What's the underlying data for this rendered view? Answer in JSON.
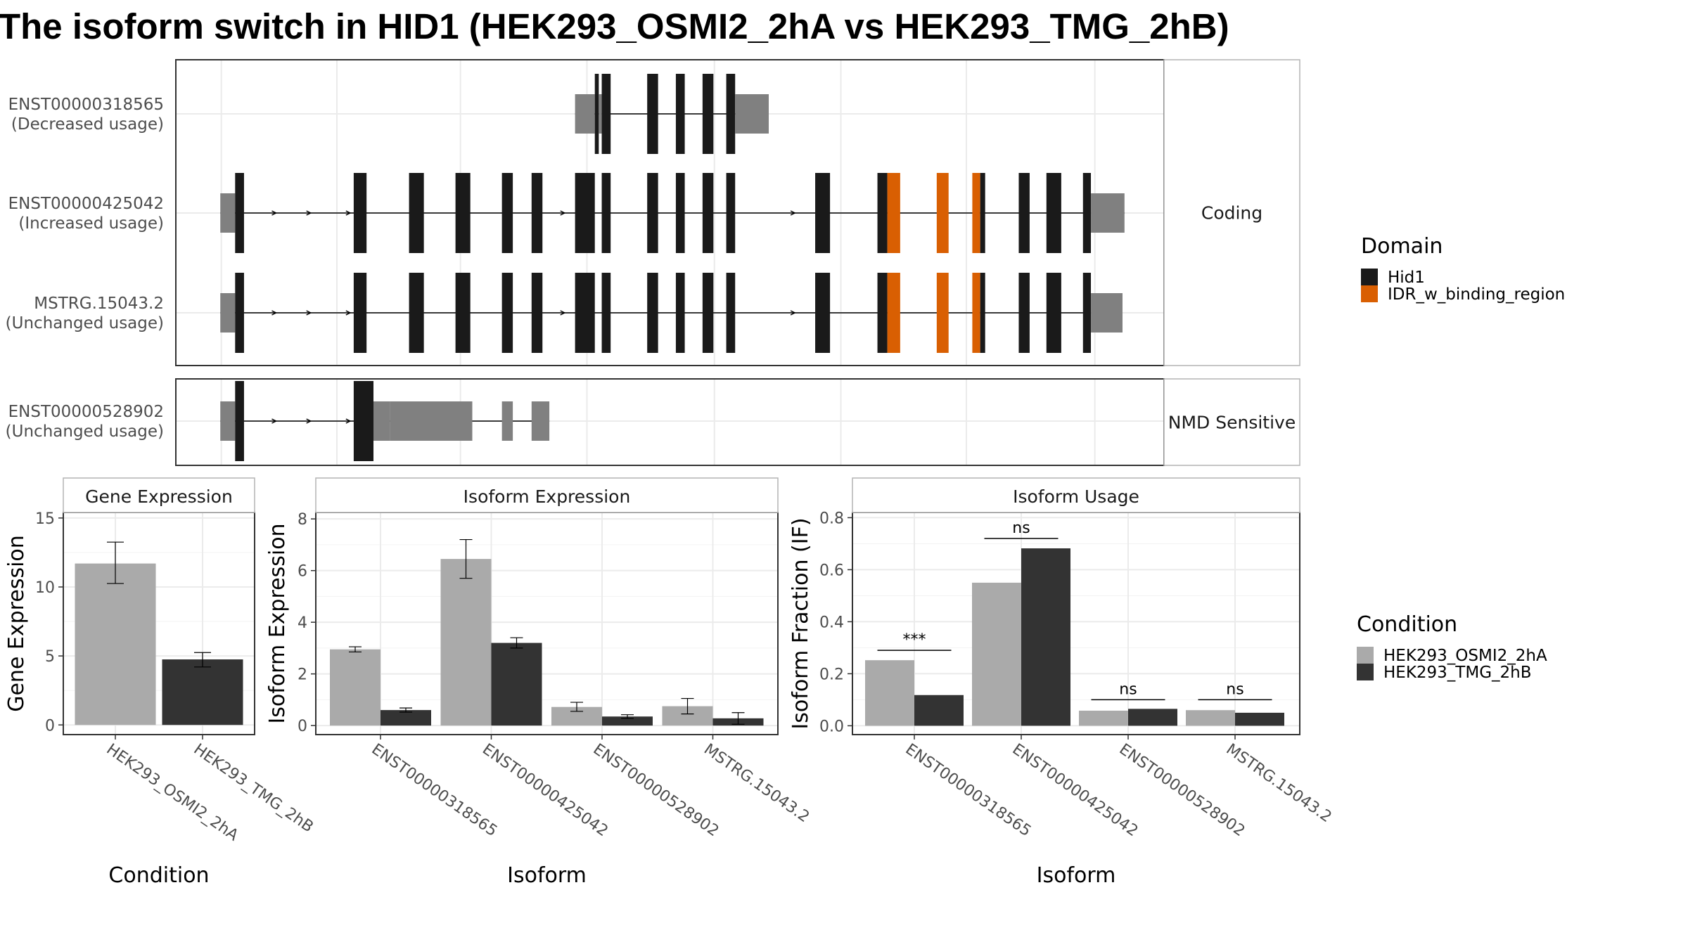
{
  "title": "The isoform switch in HID1 (HEK293_OSMI2_2hA vs HEK293_TMG_2hB)",
  "colors": {
    "exon": "#1a1a1a",
    "utr": "#808080",
    "idr": "#d95f02",
    "cond_a": "#aaaaaa",
    "cond_b": "#333333",
    "grid": "#ebebeb",
    "panel_border": "#333333",
    "strip_border": "#b3b3b3"
  },
  "transcript_panel": {
    "groups": [
      {
        "label": "Coding",
        "transcripts": [
          {
            "id": "ENST00000318565",
            "usage": "(Decreased usage)",
            "segments": [
              {
                "type": "utr",
                "start": 0.404,
                "end": 0.424
              },
              {
                "type": "exon",
                "start": 0.424,
                "end": 0.428
              },
              {
                "type": "utr",
                "start": 0.428,
                "end": 0.431
              },
              {
                "type": "exon",
                "start": 0.431,
                "end": 0.44
              },
              {
                "type": "exon",
                "start": 0.477,
                "end": 0.488
              },
              {
                "type": "exon",
                "start": 0.506,
                "end": 0.515
              },
              {
                "type": "exon",
                "start": 0.533,
                "end": 0.544
              },
              {
                "type": "exon",
                "start": 0.557,
                "end": 0.566
              },
              {
                "type": "utr",
                "start": 0.566,
                "end": 0.6
              }
            ],
            "arrows": []
          },
          {
            "id": "ENST00000425042",
            "usage": "(Increased usage)",
            "segments": [
              {
                "type": "utr",
                "start": 0.045,
                "end": 0.06
              },
              {
                "type": "exon",
                "start": 0.06,
                "end": 0.069
              },
              {
                "type": "exon",
                "start": 0.18,
                "end": 0.193
              },
              {
                "type": "exon",
                "start": 0.236,
                "end": 0.251
              },
              {
                "type": "exon",
                "start": 0.283,
                "end": 0.298
              },
              {
                "type": "exon",
                "start": 0.33,
                "end": 0.341
              },
              {
                "type": "exon",
                "start": 0.36,
                "end": 0.371
              },
              {
                "type": "exon",
                "start": 0.404,
                "end": 0.424
              },
              {
                "type": "exon",
                "start": 0.431,
                "end": 0.44
              },
              {
                "type": "exon",
                "start": 0.477,
                "end": 0.488
              },
              {
                "type": "exon",
                "start": 0.506,
                "end": 0.515
              },
              {
                "type": "exon",
                "start": 0.533,
                "end": 0.544
              },
              {
                "type": "exon",
                "start": 0.557,
                "end": 0.566
              },
              {
                "type": "exon",
                "start": 0.647,
                "end": 0.662
              },
              {
                "type": "exon",
                "start": 0.71,
                "end": 0.72
              },
              {
                "type": "idr",
                "start": 0.72,
                "end": 0.733
              },
              {
                "type": "idr",
                "start": 0.77,
                "end": 0.782
              },
              {
                "type": "idr",
                "start": 0.806,
                "end": 0.814
              },
              {
                "type": "exon",
                "start": 0.814,
                "end": 0.819
              },
              {
                "type": "exon",
                "start": 0.853,
                "end": 0.864
              },
              {
                "type": "exon",
                "start": 0.881,
                "end": 0.896
              },
              {
                "type": "exon",
                "start": 0.918,
                "end": 0.926
              },
              {
                "type": "utr",
                "start": 0.926,
                "end": 0.96
              }
            ],
            "arrows": [
              0.1,
              0.135,
              0.175,
              0.392,
              0.625
            ]
          },
          {
            "id": "MSTRG.15043.2",
            "usage": "(Unchanged usage)",
            "segments": [
              {
                "type": "utr",
                "start": 0.045,
                "end": 0.06
              },
              {
                "type": "exon",
                "start": 0.06,
                "end": 0.069
              },
              {
                "type": "exon",
                "start": 0.18,
                "end": 0.193
              },
              {
                "type": "exon",
                "start": 0.236,
                "end": 0.251
              },
              {
                "type": "exon",
                "start": 0.283,
                "end": 0.298
              },
              {
                "type": "exon",
                "start": 0.33,
                "end": 0.341
              },
              {
                "type": "exon",
                "start": 0.36,
                "end": 0.371
              },
              {
                "type": "exon",
                "start": 0.404,
                "end": 0.424
              },
              {
                "type": "exon",
                "start": 0.431,
                "end": 0.44
              },
              {
                "type": "exon",
                "start": 0.477,
                "end": 0.488
              },
              {
                "type": "exon",
                "start": 0.506,
                "end": 0.515
              },
              {
                "type": "exon",
                "start": 0.533,
                "end": 0.544
              },
              {
                "type": "exon",
                "start": 0.557,
                "end": 0.566
              },
              {
                "type": "exon",
                "start": 0.647,
                "end": 0.662
              },
              {
                "type": "exon",
                "start": 0.71,
                "end": 0.72
              },
              {
                "type": "idr",
                "start": 0.72,
                "end": 0.733
              },
              {
                "type": "idr",
                "start": 0.77,
                "end": 0.782
              },
              {
                "type": "idr",
                "start": 0.806,
                "end": 0.814
              },
              {
                "type": "exon",
                "start": 0.814,
                "end": 0.819
              },
              {
                "type": "exon",
                "start": 0.853,
                "end": 0.864
              },
              {
                "type": "exon",
                "start": 0.881,
                "end": 0.896
              },
              {
                "type": "exon",
                "start": 0.918,
                "end": 0.926
              },
              {
                "type": "utr",
                "start": 0.926,
                "end": 0.958
              }
            ],
            "arrows": [
              0.1,
              0.135,
              0.175,
              0.392,
              0.625
            ]
          }
        ]
      },
      {
        "label": "NMD Sensitive",
        "transcripts": [
          {
            "id": "ENST00000528902",
            "usage": "(Unchanged usage)",
            "segments": [
              {
                "type": "utr",
                "start": 0.045,
                "end": 0.06
              },
              {
                "type": "exon",
                "start": 0.06,
                "end": 0.069
              },
              {
                "type": "exon",
                "start": 0.18,
                "end": 0.2
              },
              {
                "type": "utr",
                "start": 0.2,
                "end": 0.217
              },
              {
                "type": "utr",
                "start": 0.217,
                "end": 0.3
              },
              {
                "type": "utr",
                "start": 0.33,
                "end": 0.341
              },
              {
                "type": "utr",
                "start": 0.36,
                "end": 0.378
              }
            ],
            "arrows": [
              0.1,
              0.135,
              0.175
            ]
          }
        ]
      }
    ]
  },
  "domain_legend": {
    "title": "Domain",
    "items": [
      {
        "label": "Hid1",
        "color": "#1a1a1a"
      },
      {
        "label": "IDR_w_binding_region",
        "color": "#d95f02"
      }
    ]
  },
  "condition_legend": {
    "title": "Condition",
    "items": [
      {
        "label": "HEK293_OSMI2_2hA",
        "color": "#aaaaaa"
      },
      {
        "label": "HEK293_TMG_2hB",
        "color": "#333333"
      }
    ]
  },
  "chart_data": [
    {
      "type": "bar",
      "strip": "Gene Expression",
      "xlabel": "Condition",
      "ylabel": "Gene Expression",
      "categories": [
        "HEK293_OSMI2_2hA",
        "HEK293_TMG_2hB"
      ],
      "values": [
        11.7,
        4.75
      ],
      "err_low": [
        10.25,
        4.2
      ],
      "err_high": [
        13.25,
        5.25
      ],
      "colors": [
        "#aaaaaa",
        "#333333"
      ],
      "ylim": [
        -0.7,
        15.4
      ],
      "yticks": [
        0,
        5,
        10,
        15
      ],
      "ytick_labels": [
        "0",
        "5",
        "10",
        "15"
      ]
    },
    {
      "type": "bar",
      "strip": "Isoform Expression",
      "xlabel": "Isoform",
      "ylabel": "Isoform Expression",
      "categories": [
        "ENST00000318565",
        "ENST00000425042",
        "ENST00000528902",
        "MSTRG.15043.2"
      ],
      "series": [
        {
          "name": "HEK293_OSMI2_2hA",
          "values": [
            2.95,
            6.45,
            0.72,
            0.75
          ],
          "err_low": [
            2.85,
            5.7,
            0.55,
            0.45
          ],
          "err_high": [
            3.05,
            7.2,
            0.9,
            1.05
          ]
        },
        {
          "name": "HEK293_TMG_2hB",
          "values": [
            0.6,
            3.2,
            0.35,
            0.28
          ],
          "err_low": [
            0.52,
            3.0,
            0.28,
            0.05
          ],
          "err_high": [
            0.68,
            3.4,
            0.42,
            0.5
          ]
        }
      ],
      "ylim": [
        -0.35,
        8.25
      ],
      "yticks": [
        0,
        2,
        4,
        6,
        8
      ],
      "ytick_labels": [
        "0",
        "2",
        "4",
        "6",
        "8"
      ]
    },
    {
      "type": "bar",
      "strip": "Isoform Usage",
      "xlabel": "Isoform",
      "ylabel": "Isoform Fraction (IF)",
      "categories": [
        "ENST00000318565",
        "ENST00000425042",
        "ENST00000528902",
        "MSTRG.15043.2"
      ],
      "series": [
        {
          "name": "HEK293_OSMI2_2hA",
          "values": [
            0.252,
            0.55,
            0.058,
            0.06
          ]
        },
        {
          "name": "HEK293_TMG_2hB",
          "values": [
            0.118,
            0.682,
            0.065,
            0.05
          ]
        }
      ],
      "significance": [
        {
          "label": "***",
          "y": 0.29
        },
        {
          "label": "ns",
          "y": 0.72
        },
        {
          "label": "ns",
          "y": 0.1
        },
        {
          "label": "ns",
          "y": 0.1
        }
      ],
      "ylim": [
        -0.034,
        0.82
      ],
      "yticks": [
        0,
        0.2,
        0.4,
        0.6,
        0.8
      ],
      "ytick_labels": [
        "0.0",
        "0.2",
        "0.4",
        "0.6",
        "0.8"
      ]
    }
  ]
}
